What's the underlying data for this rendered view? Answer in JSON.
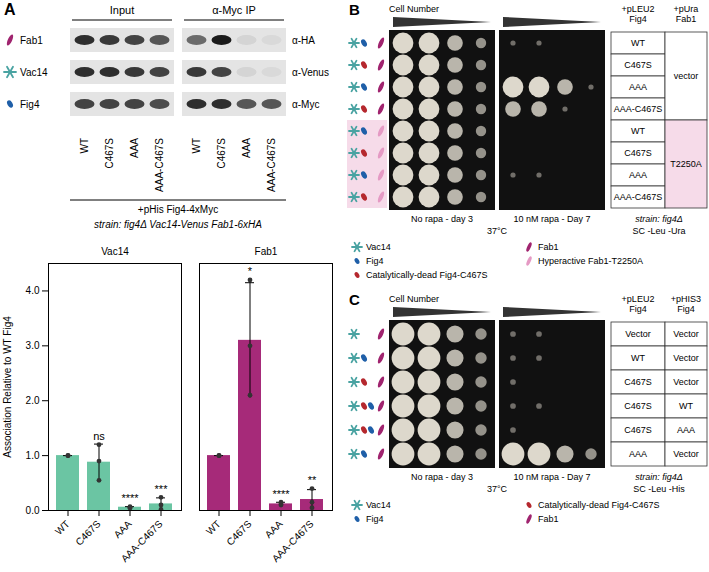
{
  "chart_data": {
    "type": "bar",
    "ylabel": "Association Relative to WT Fig4",
    "categories": [
      "WT",
      "C467S",
      "AAA",
      "AAA-C467S"
    ],
    "series": [
      {
        "name": "Vac14",
        "color": "#6bc5a3",
        "values": [
          1,
          0.88,
          0.06,
          0.12
        ],
        "errors": [
          0,
          0.33,
          0.01,
          0.11
        ],
        "points": [
          [
            1,
            1,
            1
          ],
          [
            0.55,
            0.9,
            1.2
          ],
          [
            0.05,
            0.07,
            0.05
          ],
          [
            0.02,
            0.1,
            0.24
          ]
        ],
        "significance": [
          null,
          "ns",
          "****",
          "***"
        ]
      },
      {
        "name": "Fab1",
        "color": "#a62a79",
        "values": [
          1,
          3.1,
          0.12,
          0.2
        ],
        "errors": [
          0,
          1.05,
          0.03,
          0.18
        ],
        "points": [
          [
            1,
            1,
            1
          ],
          [
            2.1,
            3.0,
            4.2
          ],
          [
            0.1,
            0.15,
            0.12
          ],
          [
            0.05,
            0.15,
            0.4
          ]
        ],
        "significance": [
          null,
          "*",
          "****",
          "**"
        ]
      }
    ],
    "ylim": [
      0,
      4.5
    ],
    "yticks": [
      0,
      1,
      2,
      3,
      4
    ],
    "grid": false
  },
  "blot": {
    "letter": "A",
    "groups": [
      "Input",
      "α-Myc IP"
    ],
    "lanes": [
      "WT",
      "C467S",
      "AAA",
      "AAA-C467S"
    ],
    "rows": [
      {
        "protein": "Fab1",
        "antibody": "α-HA",
        "color": "#a0246f",
        "bands": [
          [
            0.9,
            0.85,
            0.8,
            0.7
          ],
          [
            0.6,
            1,
            0.08,
            0.05
          ]
        ]
      },
      {
        "protein": "Vac14",
        "antibody": "α-Venus",
        "color": "#4aa3a2",
        "bands": [
          [
            0.9,
            0.9,
            0.85,
            0.8
          ],
          [
            0.85,
            0.8,
            0.08,
            0.05
          ]
        ]
      },
      {
        "protein": "Fig4",
        "antibody": "α-Myc",
        "color": "#1f5fa8",
        "bands": [
          [
            0.8,
            0.8,
            0.8,
            0.75
          ],
          [
            0.9,
            0.9,
            0.7,
            0.7
          ]
        ]
      }
    ],
    "plasmid": "+pHis Fig4-4xMyc",
    "strain": "strain: fig4Δ Vac14-Venus Fab1-6xHA"
  },
  "panel_b": {
    "letter": "B",
    "header": "Cell Number",
    "conditions": [
      "No rapa - day 3",
      "10 nM rapa - Day 7"
    ],
    "temperature": "37°C",
    "columns": [
      "+pLEU2 Fig4",
      "+pUra Fab1"
    ],
    "rows": [
      {
        "cells": [
          "WT",
          "vector"
        ],
        "growth": [
          [
            4,
            4,
            3,
            2
          ],
          [
            1,
            1,
            0,
            0
          ]
        ]
      },
      {
        "cells": [
          "C467S",
          "vector"
        ],
        "growth": [
          [
            4,
            4,
            3,
            2
          ],
          [
            0,
            0,
            0,
            0
          ]
        ]
      },
      {
        "cells": [
          "AAA",
          "vector"
        ],
        "growth": [
          [
            4,
            4,
            3,
            2
          ],
          [
            4,
            4,
            3,
            1
          ]
        ]
      },
      {
        "cells": [
          "AAA-C467S",
          "vector"
        ],
        "growth": [
          [
            4,
            4,
            3,
            2
          ],
          [
            3,
            3,
            1,
            0
          ]
        ]
      },
      {
        "cells": [
          "WT",
          "T2250A"
        ],
        "growth": [
          [
            4,
            4,
            3,
            2
          ],
          [
            0,
            0,
            0,
            0
          ]
        ]
      },
      {
        "cells": [
          "C467S",
          "T2250A"
        ],
        "growth": [
          [
            4,
            4,
            3,
            2
          ],
          [
            0,
            0,
            0,
            0
          ]
        ]
      },
      {
        "cells": [
          "AAA",
          "T2250A"
        ],
        "growth": [
          [
            4,
            4,
            3,
            2
          ],
          [
            1,
            1,
            0,
            0
          ]
        ]
      },
      {
        "cells": [
          "AAA-C467S",
          "T2250A"
        ],
        "growth": [
          [
            4,
            4,
            3,
            2
          ],
          [
            0,
            0,
            0,
            0
          ]
        ]
      }
    ],
    "strain": "strain: fig4Δ",
    "medium": "SC -Leu -Ura",
    "legend": [
      {
        "label": "Vac14",
        "color": "#4aa3a2"
      },
      {
        "label": "Fig4",
        "color": "#1f5fa8"
      },
      {
        "label": "Catalytically-dead Fig4-C467S",
        "color": "#b5282e"
      },
      {
        "label": "Fab1",
        "color": "#a0246f"
      },
      {
        "label": "Hyperactive Fab1-T2250A",
        "color": "#e59ac4"
      }
    ]
  },
  "panel_c": {
    "letter": "C",
    "header": "Cell Number",
    "conditions": [
      "No rapa - day 3",
      "10 nM rapa - Day 7"
    ],
    "temperature": "37°C",
    "columns": [
      "+pLEU2 Fig4",
      "+pHIS3 Fig4"
    ],
    "rows": [
      {
        "cells": [
          "Vector",
          "Vector"
        ],
        "growth": [
          [
            4,
            4,
            3,
            2
          ],
          [
            1,
            1,
            0,
            0
          ]
        ]
      },
      {
        "cells": [
          "WT",
          "Vector"
        ],
        "growth": [
          [
            4,
            4,
            3,
            2
          ],
          [
            1,
            1,
            0,
            0
          ]
        ]
      },
      {
        "cells": [
          "C467S",
          "Vector"
        ],
        "growth": [
          [
            4,
            4,
            3,
            2
          ],
          [
            1,
            0,
            0,
            0
          ]
        ]
      },
      {
        "cells": [
          "C467S",
          "WT"
        ],
        "growth": [
          [
            4,
            4,
            3,
            2
          ],
          [
            1,
            1,
            0,
            0
          ]
        ]
      },
      {
        "cells": [
          "C467S",
          "AAA"
        ],
        "growth": [
          [
            4,
            4,
            3,
            2
          ],
          [
            1,
            0,
            0,
            0
          ]
        ]
      },
      {
        "cells": [
          "AAA",
          "Vector"
        ],
        "growth": [
          [
            4,
            4,
            3,
            2
          ],
          [
            4,
            4,
            3,
            2
          ]
        ]
      }
    ],
    "strain": "strain: fig4Δ",
    "medium": "SC -Leu -His",
    "legend": [
      {
        "label": "Vac14",
        "color": "#4aa3a2"
      },
      {
        "label": "Fig4",
        "color": "#1f5fa8"
      },
      {
        "label": "Catalytically-dead Fig4-C467S",
        "color": "#b5282e"
      },
      {
        "label": "Fab1",
        "color": "#a0246f"
      }
    ]
  }
}
